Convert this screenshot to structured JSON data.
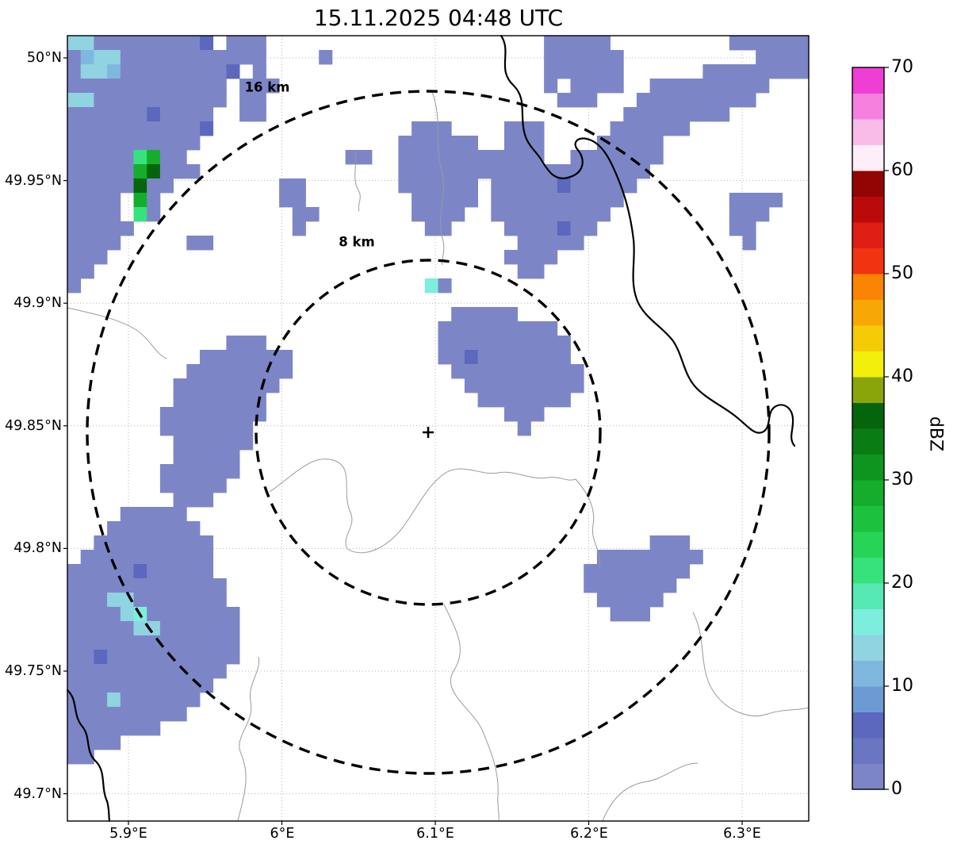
{
  "title": "15.11.2025 04:48 UTC",
  "chart_data": {
    "type": "heatmap",
    "title": "15.11.2025 04:48 UTC",
    "lat_ticks": [
      "50°N",
      "49.95°N",
      "49.9°N",
      "49.85°N",
      "49.8°N",
      "49.75°N",
      "49.7°N"
    ],
    "lon_ticks": [
      "5.9°E",
      "6°E",
      "6.1°E",
      "6.2°E",
      "6.3°E"
    ],
    "axis_ranges": {
      "lon": [
        5.86,
        6.343
      ],
      "lat": [
        49.689,
        50.009
      ]
    },
    "range_rings": [
      {
        "label": "8 km",
        "radius_km": 8
      },
      {
        "label": "16 km",
        "radius_km": 16
      }
    ],
    "center_marker": "+",
    "colorbar": {
      "label": "dBZ",
      "min": 0,
      "max": 70,
      "step": 2.5,
      "ticks": [
        0,
        10,
        20,
        30,
        40,
        50,
        60,
        70
      ],
      "colors": [
        "#7c86c7",
        "#6a76c2",
        "#5b68bd",
        "#6e9ad4",
        "#7fb8de",
        "#8fd4e0",
        "#7deedd",
        "#57e9b4",
        "#35e27b",
        "#28d455",
        "#1cc23e",
        "#14ad2c",
        "#0e951f",
        "#097d14",
        "#05650c",
        "#8aa50a",
        "#f2ef0b",
        "#f5cb07",
        "#f8a805",
        "#fa8403",
        "#f2330f",
        "#e01f14",
        "#bb0a0a",
        "#930404",
        "#fdeef7",
        "#f9bce9",
        "#f580de",
        "#ee3ed3"
      ]
    },
    "grid": {
      "units": "dBZ",
      "class_values": {
        "a": 0,
        "b": 5,
        "c": 10,
        "d": 12.5,
        "e": 15,
        "f": 20,
        "g": 27.5,
        "h": 35
      },
      "palette": {
        "a": "#7c86c7",
        "b": "#5b68bd",
        "c": "#7fb8de",
        "d": "#8fd4e0",
        "e": "#7deedd",
        "f": "#35e27b",
        "g": "#14ad2c",
        "h": "#05650c"
      },
      "rows": [
        [
          "ddaaaaaa",
          "aab.aaa.",
          "........",
          "........",
          "....aaaa",
          "a.......",
          "..aaaaaa"
        ],
        [
          "acddaaaa",
          "aaaaaaa.",
          "...a....",
          "........",
          "....aaaa",
          "aa......",
          "....aaaa"
        ],
        [
          "addcaaaa",
          "aaaab.a.",
          "........",
          "........",
          "....aaaa",
          "aa......",
          "aaaaaaaa"
        ],
        [
          "aaaaaaaa",
          "aaaa.aaa",
          "........",
          "........",
          "....a.aa",
          "aa..aaaa",
          "aaaaa..."
        ],
        [
          "ddaaaaaa",
          "aaaa.aa.",
          "........",
          "........",
          ".....aaa",
          "...aaaaa",
          "aaaa...."
        ],
        [
          "aaaaaaba",
          "aaa..aa.",
          "........",
          "........",
          "........",
          "..aaaaaa",
          "aa......"
        ],
        [
          "aaaaaaaa",
          "aab.....",
          "........",
          "..aaa...",
          ".aaa....",
          ".aaaaaa.",
          "........"
        ],
        [
          "aaaaaaaa",
          "aa......",
          "........",
          ".aaaaaa.",
          ".aaa....",
          "aaaaa...",
          "........"
        ],
        [
          "aaaaafga",
          "a.......",
          ".....aa.",
          ".aaaaaaa",
          "aaaa..aa",
          "aaaaa...",
          "........"
        ],
        [
          "aaaaagha",
          "aa......",
          "........",
          ".aaaaaaa",
          "aaaaaaaa",
          "aaaa....",
          "........"
        ],
        [
          "aaaaahaa",
          "........",
          "aa......",
          ".aaaaaa.",
          "aaaaabaa",
          "aaa.....",
          "........"
        ],
        [
          "aaaa.ga.",
          "........",
          "aa......",
          "..aaaaa.",
          "aaaaaaaa",
          "aa......",
          "..aaaa.."
        ],
        [
          "aaaa.fa.",
          "........",
          ".aa.....",
          "..aaaa..",
          "aaaaaaaa",
          "a.......",
          "..aaa..."
        ],
        [
          "aaaaa...",
          "........",
          ".a......",
          "...aa...",
          ".aaaabaa",
          "........",
          "..aa...."
        ],
        [
          "aaaa....",
          ".aa.....",
          "........",
          "........",
          "..aaaaa.",
          "........",
          "...a...."
        ],
        [
          "aaa.....",
          "........",
          "........",
          "........",
          ".aaaa...",
          "........",
          "........"
        ],
        [
          "aa......",
          "........",
          "........",
          "........",
          "..aa....",
          "........",
          "........"
        ],
        [
          "a.......",
          "........",
          "........",
          "...ea...",
          "........",
          "........",
          "........"
        ],
        [
          "........",
          "........",
          "........",
          "........",
          "........",
          "........",
          "........"
        ],
        [
          "........",
          "........",
          "........",
          ".....aaa",
          "aa......",
          "........",
          "........"
        ],
        [
          "........",
          "........",
          "........",
          "....aaaa",
          "aaaaa...",
          "........",
          "........"
        ],
        [
          "........",
          "....aaa.",
          "........",
          "....aaaa",
          "aaaaaa..",
          "........",
          "........"
        ],
        [
          "........",
          "..aaaaaa",
          "a.......",
          "....aaba",
          "aaaaaa..",
          "........",
          "........"
        ],
        [
          "........",
          ".aaaaaaa",
          "a.......",
          ".....aaa",
          "aaaaaaa.",
          "........",
          "........"
        ],
        [
          "........",
          "aaaaaaaa",
          "........",
          "......aa",
          "aaaaaaa.",
          "........",
          "........"
        ],
        [
          "........",
          "aaaaaaa.",
          "........",
          ".......a",
          "aaaaaa..",
          "........",
          "........"
        ],
        [
          ".......a",
          "aaaaaaa.",
          "........",
          "........",
          ".aaa....",
          "........",
          "........"
        ],
        [
          ".......a",
          "aaaaaa..",
          "........",
          "........",
          "..a.....",
          "........",
          "........"
        ],
        [
          "........",
          "aaaaaa..",
          "........",
          "........",
          "........",
          "........",
          "........"
        ],
        [
          "........",
          "aaaaa...",
          "........",
          "........",
          "........",
          "........",
          "........"
        ],
        [
          ".......a",
          "aaaaa...",
          "........",
          "........",
          "........",
          "........",
          "........"
        ],
        [
          ".......a",
          "aaaa....",
          "........",
          "........",
          "........",
          "........",
          "........"
        ],
        [
          "........",
          "aaa.....",
          "........",
          "........",
          "........",
          "........",
          "........"
        ],
        [
          "....aaaa",
          "a.......",
          "........",
          "........",
          "........",
          "........",
          "........"
        ],
        [
          "...aaaaa",
          "aa......",
          "........",
          "........",
          "........",
          "........",
          "........"
        ],
        [
          "..aaaaaa",
          "aaa.....",
          "........",
          "........",
          "........",
          "....aaa.",
          "........"
        ],
        [
          ".aaaaaaa",
          "aaa.....",
          "........",
          "........",
          "........",
          "aaaaaaaa",
          "........"
        ],
        [
          "aaaaabaa",
          "aaa.....",
          "........",
          "........",
          ".......a",
          "aaaaaaa.",
          "........"
        ],
        [
          "aaaaaaaa",
          "aaaa....",
          "........",
          "........",
          ".......a",
          "aaaaaa..",
          "........"
        ],
        [
          "aaaddaaa",
          "aaaa....",
          "........",
          "........",
          "........",
          "aaaaa...",
          "........"
        ],
        [
          "aaaadeaa",
          "aaaaa...",
          "........",
          "........",
          "........",
          ".aaa....",
          "........"
        ],
        [
          "aaaaadda",
          "aaaaa...",
          "........",
          "........",
          "........",
          "........",
          "........"
        ],
        [
          "aaaaaaaa",
          "aaaaa...",
          "........",
          "........",
          "........",
          "........",
          "........"
        ],
        [
          "aabaaaaa",
          "aaaaa...",
          "........",
          "........",
          "........",
          "........",
          "........"
        ],
        [
          "aaaaaaaa",
          "aaaa....",
          "........",
          "........",
          "........",
          "........",
          "........"
        ],
        [
          "aaaaaaaa",
          "aaa.....",
          "........",
          "........",
          "........",
          "........",
          "........"
        ],
        [
          "aaadaaaa",
          "aa......",
          "........",
          "........",
          "........",
          "........",
          "........"
        ],
        [
          "aaaaaaaa",
          "a.......",
          "........",
          "........",
          "........",
          "........",
          "........"
        ],
        [
          "aaaaaaa.",
          "........",
          "........",
          "........",
          "........",
          "........",
          "........"
        ],
        [
          "aaaa....",
          "........",
          "........",
          "........",
          "........",
          "........",
          "........"
        ],
        [
          "aa......",
          "........",
          "........",
          "........",
          "........",
          "........",
          "........"
        ],
        [
          "........",
          "........",
          "........",
          "........",
          "........",
          "........",
          "........"
        ],
        [
          "........",
          "........",
          "........",
          "........",
          "........",
          "........",
          "........"
        ],
        [
          "........",
          "........",
          "........",
          "........",
          "........",
          "........",
          "........"
        ],
        [
          "........",
          "........",
          "........",
          "........",
          "........",
          "........",
          "........"
        ]
      ]
    }
  }
}
